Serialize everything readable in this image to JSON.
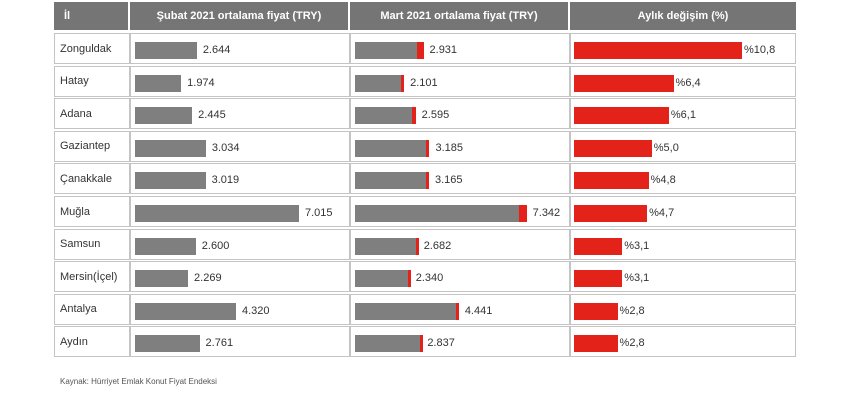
{
  "chart_data": {
    "type": "bar",
    "headers": [
      "İl",
      "Şubat 2021 ortalama fiyat (TRY)",
      "Mart 2021 ortalama fiyat (TRY)",
      "Aylık değişim (%)"
    ],
    "categories": [
      "Zonguldak",
      "Hatay",
      "Adana",
      "Gaziantep",
      "Çanakkale",
      "Muğla",
      "Samsun",
      "Mersin(İçel)",
      "Antalya",
      "Aydın"
    ],
    "series": [
      {
        "name": "Şubat 2021 ortalama fiyat (TRY)",
        "values": [
          2644,
          1974,
          2445,
          3034,
          3019,
          7015,
          2600,
          2269,
          4320,
          2761
        ],
        "labels": [
          "2.644",
          "1.974",
          "2.445",
          "3.034",
          "3.019",
          "7.015",
          "2.600",
          "2.269",
          "4.320",
          "2.761"
        ]
      },
      {
        "name": "Mart 2021 ortalama fiyat (TRY)",
        "values": [
          2931,
          2101,
          2595,
          3185,
          3165,
          7342,
          2682,
          2340,
          4441,
          2837
        ],
        "labels": [
          "2.931",
          "2.101",
          "2.595",
          "3.185",
          "3.165",
          "7.342",
          "2.682",
          "2.340",
          "4.441",
          "2.837"
        ]
      },
      {
        "name": "Aylık değişim (%)",
        "values": [
          10.8,
          6.4,
          6.1,
          5.0,
          4.8,
          4.7,
          3.1,
          3.1,
          2.8,
          2.8
        ],
        "labels": [
          "%10,8",
          "%6,4",
          "%6,1",
          "%5,0",
          "%4,8",
          "%4,7",
          "%3,1",
          "%3,1",
          "%2,8",
          "%2,8"
        ]
      }
    ],
    "source": "Kaynak: Hürriyet Emlak Konut Fiyat Endeksi",
    "colors": {
      "price": "#7f7f7f",
      "increase": "#e32219",
      "header": "#757575"
    }
  }
}
